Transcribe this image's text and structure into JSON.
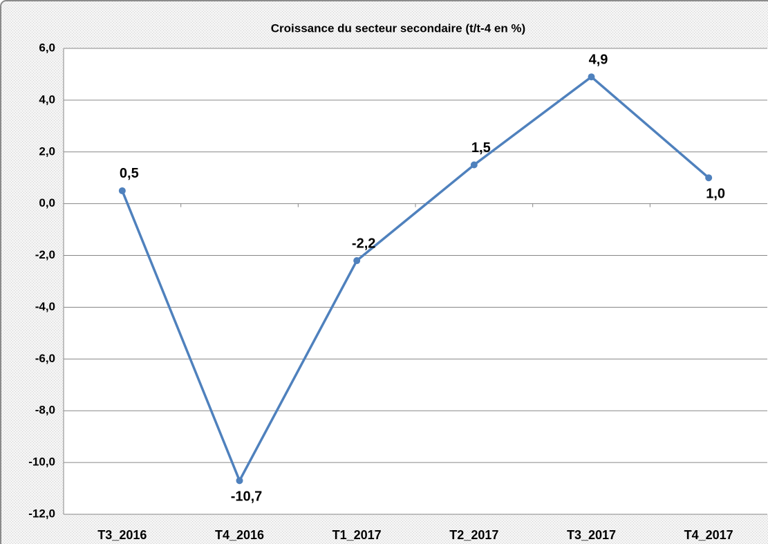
{
  "chart_data": {
    "type": "line",
    "title": "Croissance du secteur secondaire (t/t-4 en %)",
    "categories": [
      "T3_2016",
      "T4_2016",
      "T1_2017",
      "T2_2017",
      "T3_2017",
      "T4_2017"
    ],
    "series": [
      {
        "name": "Croissance du secteur secondaire",
        "color": "#4f81bd",
        "values": [
          0.5,
          -10.7,
          -2.2,
          1.5,
          4.9,
          1.0
        ],
        "value_labels": [
          "0,5",
          "-10,7",
          "-2,2",
          "1,5",
          "4,9",
          "1,0"
        ]
      }
    ],
    "ylim": [
      -12,
      6
    ],
    "yticks": [
      {
        "value": -12,
        "label": "-12,0"
      },
      {
        "value": -10,
        "label": "-10,0"
      },
      {
        "value": -8,
        "label": "-8,0"
      },
      {
        "value": -6,
        "label": "-6,0"
      },
      {
        "value": -4,
        "label": "-4,0"
      },
      {
        "value": -2,
        "label": "-2,0"
      },
      {
        "value": 0,
        "label": "0,0"
      },
      {
        "value": 2,
        "label": "2,0"
      },
      {
        "value": 4,
        "label": "4,0"
      },
      {
        "value": 6,
        "label": "6,0"
      }
    ],
    "grid": true
  }
}
